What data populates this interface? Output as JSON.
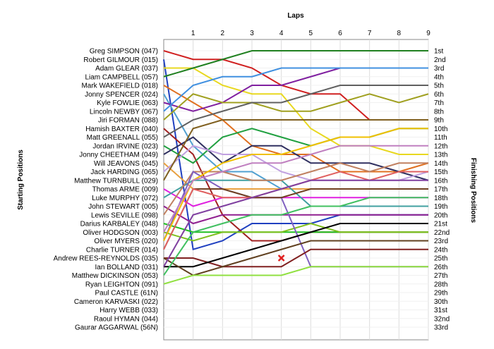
{
  "chart_data": {
    "type": "line",
    "title": "",
    "xlabel": "Laps",
    "ylabel_left": "Starting Positions",
    "ylabel_right": "Finishing Positions",
    "x": [
      0,
      1,
      2,
      3,
      4,
      5,
      6,
      7,
      8,
      9
    ],
    "x_tick_labels": [
      "1",
      "2",
      "3",
      "4",
      "5",
      "6",
      "7",
      "8",
      "9"
    ],
    "ylim": [
      1,
      33
    ],
    "y_inverted": true,
    "grid": true,
    "starting_labels": [
      "Greg SIMPSON (047)",
      "Robert GILMOUR (015)",
      "Adam GLEAR (037)",
      "Liam CAMPBELL (057)",
      "Mark WAKEFIELD (018)",
      "Jonny SPENCER (024)",
      "Kyle FOWLIE (063)",
      "Lincoln NEWBY (067)",
      "Jiri FORMAN (088)",
      "Hamish BAXTER (040)",
      "Matt GREENALL (055)",
      "Jordan IRVINE (023)",
      "Jonny CHEETHAM (049)",
      "Will JEAVONS (045)",
      "Jack HARDING (065)",
      "Matthew TURNBULL (029)",
      "Thomas ARME (009)",
      "Luke MURPHY (072)",
      "John STEWART (005)",
      "Lewis SEVILLE (098)",
      "Darius KARBALEY (048)",
      "Oliver HODGSON (003)",
      "Oliver MYERS (020)",
      "Charlie TURNER (014)",
      "Andrew REES-REYNOLDS (035)",
      "Ian BOLLAND (031)",
      "Matthew DICKINSON (053)",
      "Ryan LEIGHTON (091)",
      "Paul CASTLE (61N)",
      "Cameron KARVASKI (022)",
      "Harry WEBB (033)",
      "Raoul HYMAN (044)",
      "Gaurar AGGARWAL (56N)"
    ],
    "finishing_labels": [
      "1st",
      "2nd",
      "3rd",
      "4th",
      "5th",
      "6th",
      "7th",
      "8th",
      "9th",
      "10th",
      "11th",
      "12th",
      "13th",
      "14th",
      "15th",
      "16th",
      "17th",
      "18th",
      "19th",
      "20th",
      "21st",
      "22nd",
      "23rd",
      "24th",
      "25th",
      "26th",
      "27th",
      "28th",
      "29th",
      "30th",
      "31st",
      "32nd",
      "33rd"
    ],
    "series": [
      {
        "color": "#d02020",
        "values": [
          1,
          2,
          2,
          3,
          5,
          6,
          6,
          9,
          9,
          9
        ]
      },
      {
        "color": "#2040c0",
        "values": [
          2,
          24,
          23,
          21,
          21,
          21,
          20,
          20,
          20,
          20
        ]
      },
      {
        "color": "#e8d820",
        "values": [
          3,
          3,
          5,
          6,
          6,
          10,
          12,
          12,
          13,
          13
        ]
      },
      {
        "color": "#208020",
        "values": [
          4,
          3,
          2,
          1,
          1,
          1,
          1,
          1,
          1,
          1
        ]
      },
      {
        "color": "#e07020",
        "values": [
          5,
          7,
          9,
          12,
          13,
          13,
          15,
          15,
          15,
          14
        ]
      },
      {
        "color": "#50a0d0",
        "values": [
          6,
          12,
          15,
          15,
          17,
          17,
          17,
          17,
          17,
          17
        ]
      },
      {
        "color": "#8020a0",
        "values": [
          7,
          8,
          7,
          5,
          5,
          4,
          3,
          3,
          3,
          3
        ]
      },
      {
        "color": "#4090e0",
        "values": [
          8,
          5,
          4,
          4,
          3,
          3,
          3,
          3,
          3,
          3
        ]
      },
      {
        "color": "#a0a020",
        "values": [
          9,
          6,
          7,
          7,
          8,
          8,
          7,
          6,
          7,
          6
        ]
      },
      {
        "color": "#a02020",
        "values": [
          10,
          13,
          20,
          23,
          23,
          22,
          22,
          22,
          22,
          22
        ]
      },
      {
        "color": "#606060",
        "values": [
          11,
          9,
          8,
          7,
          7,
          6,
          5,
          5,
          5,
          5
        ]
      },
      {
        "color": "#20a040",
        "values": [
          12,
          14,
          11,
          10,
          11,
          12,
          11,
          11,
          10,
          10
        ]
      },
      {
        "color": "#303060",
        "values": [
          13,
          11,
          14,
          12,
          12,
          14,
          14,
          14,
          15,
          16
        ]
      },
      {
        "color": "#e8a040",
        "values": [
          14,
          17,
          17,
          17,
          17,
          17,
          17,
          17,
          17,
          17
        ]
      },
      {
        "color": "#c0a0e0",
        "values": [
          15,
          12,
          13,
          13,
          15,
          16,
          16,
          16,
          16,
          15
        ]
      },
      {
        "color": "#806020",
        "values": [
          16,
          10,
          9,
          9,
          9,
          9,
          9,
          9,
          9,
          9
        ]
      },
      {
        "color": "#e020e0",
        "values": [
          17,
          19,
          18,
          18,
          18,
          18,
          18,
          18,
          18,
          18
        ]
      },
      {
        "color": "#40a0a0",
        "values": [
          18,
          16,
          16,
          16,
          16,
          19,
          19,
          19,
          19,
          19
        ]
      },
      {
        "color": "#902090",
        "values": [
          19,
          21,
          20,
          20,
          20,
          20,
          20,
          20,
          20,
          20
        ]
      },
      {
        "color": "#c08060",
        "values": [
          20,
          15,
          15,
          16,
          16,
          15,
          14,
          15,
          14,
          14
        ]
      },
      {
        "color": "#20c020",
        "values": [
          21,
          22,
          22,
          22,
          22,
          22,
          22,
          22,
          22,
          22
        ]
      },
      {
        "color": "#80c020",
        "values": [
          22,
          23,
          22,
          22,
          22,
          21,
          22,
          22,
          22,
          22
        ]
      },
      {
        "color": "#8060c0",
        "values": [
          23,
          15,
          17,
          18,
          18,
          26,
          26,
          26,
          26,
          26
        ]
      },
      {
        "color": "#704020",
        "values": [
          24,
          17,
          17,
          18,
          18,
          17,
          17,
          17,
          17,
          17
        ]
      },
      {
        "color": "#802020",
        "values": [
          25,
          25,
          26,
          26,
          26,
          24,
          24,
          24,
          24,
          24
        ]
      },
      {
        "color": "#000000",
        "values": [
          26,
          26,
          25,
          24,
          23,
          22,
          21,
          21,
          21,
          21
        ]
      },
      {
        "color": "#604020",
        "values": [
          25,
          27,
          26,
          25,
          24,
          23,
          23,
          23,
          23,
          23
        ]
      },
      {
        "color": "#90e040",
        "values": [
          28,
          27,
          27,
          27,
          27,
          26,
          26,
          26,
          26,
          26
        ]
      },
      {
        "color": "#f0c000",
        "values": [
          23,
          16,
          14,
          13,
          13,
          12,
          11,
          11,
          10,
          10
        ]
      },
      {
        "color": "#c080c0",
        "values": [
          22,
          16,
          15,
          14,
          14,
          13,
          12,
          12,
          12,
          12
        ]
      },
      {
        "color": "#e06060",
        "values": [
          24,
          17,
          18,
          18,
          17,
          16,
          15,
          16,
          15,
          15
        ]
      },
      {
        "color": "#8040a0",
        "values": [
          26,
          20,
          19,
          18,
          17,
          16,
          16,
          16,
          16,
          16
        ]
      },
      {
        "color": "#40c060",
        "values": [
          27,
          22,
          21,
          20,
          20,
          19,
          19,
          18,
          18,
          18
        ]
      }
    ],
    "markers": [
      {
        "x": 4,
        "y": 25,
        "symbol": "x",
        "color": "#e02020"
      }
    ]
  }
}
